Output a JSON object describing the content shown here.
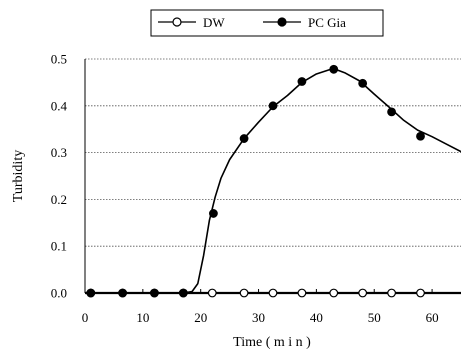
{
  "chart_data": {
    "type": "line",
    "title": "",
    "xlabel": "Time ( m i n )",
    "ylabel": "Turbidity",
    "xlim": [
      0,
      65
    ],
    "ylim": [
      0,
      0.5
    ],
    "xticks": [
      "0",
      "10",
      "20",
      "30",
      "40",
      "50",
      "60"
    ],
    "yticks": [
      "0.0",
      "0.1",
      "0.2",
      "0.3",
      "0.4",
      "0.5"
    ],
    "grid": "horizontal-dotted",
    "legend_position": "top-center",
    "series": [
      {
        "name": "DW",
        "marker": "open-circle",
        "color": "#000000",
        "line": [
          [
            0,
            0
          ],
          [
            65,
            0
          ]
        ],
        "points": [
          [
            1,
            0
          ],
          [
            6.5,
            0
          ],
          [
            12,
            0
          ],
          [
            17,
            0
          ],
          [
            22,
            0
          ],
          [
            27.5,
            0
          ],
          [
            32.5,
            0
          ],
          [
            37.5,
            0
          ],
          [
            43,
            0
          ],
          [
            48,
            0
          ],
          [
            53,
            0
          ],
          [
            58,
            0
          ]
        ]
      },
      {
        "name": "PC Gia",
        "marker": "filled-circle",
        "color": "#000000",
        "line": [
          [
            0,
            0
          ],
          [
            17,
            0
          ],
          [
            18.5,
            0.003
          ],
          [
            19.5,
            0.02
          ],
          [
            20.5,
            0.08
          ],
          [
            21.5,
            0.155
          ],
          [
            22.5,
            0.205
          ],
          [
            23.5,
            0.245
          ],
          [
            25,
            0.285
          ],
          [
            27.5,
            0.33
          ],
          [
            30,
            0.365
          ],
          [
            32.5,
            0.398
          ],
          [
            35,
            0.422
          ],
          [
            37.5,
            0.45
          ],
          [
            40,
            0.468
          ],
          [
            42.5,
            0.478
          ],
          [
            43.5,
            0.477
          ],
          [
            45,
            0.47
          ],
          [
            47.5,
            0.453
          ],
          [
            50,
            0.425
          ],
          [
            52.5,
            0.398
          ],
          [
            55,
            0.37
          ],
          [
            57.5,
            0.348
          ],
          [
            60,
            0.334
          ],
          [
            62.5,
            0.318
          ],
          [
            65,
            0.302
          ]
        ],
        "points": [
          [
            1,
            0
          ],
          [
            6.5,
            0
          ],
          [
            12,
            0
          ],
          [
            17,
            0
          ],
          [
            22.2,
            0.17
          ],
          [
            27.5,
            0.33
          ],
          [
            32.5,
            0.4
          ],
          [
            37.5,
            0.452
          ],
          [
            43,
            0.478
          ],
          [
            48,
            0.448
          ],
          [
            53,
            0.387
          ],
          [
            58,
            0.335
          ]
        ]
      }
    ]
  }
}
